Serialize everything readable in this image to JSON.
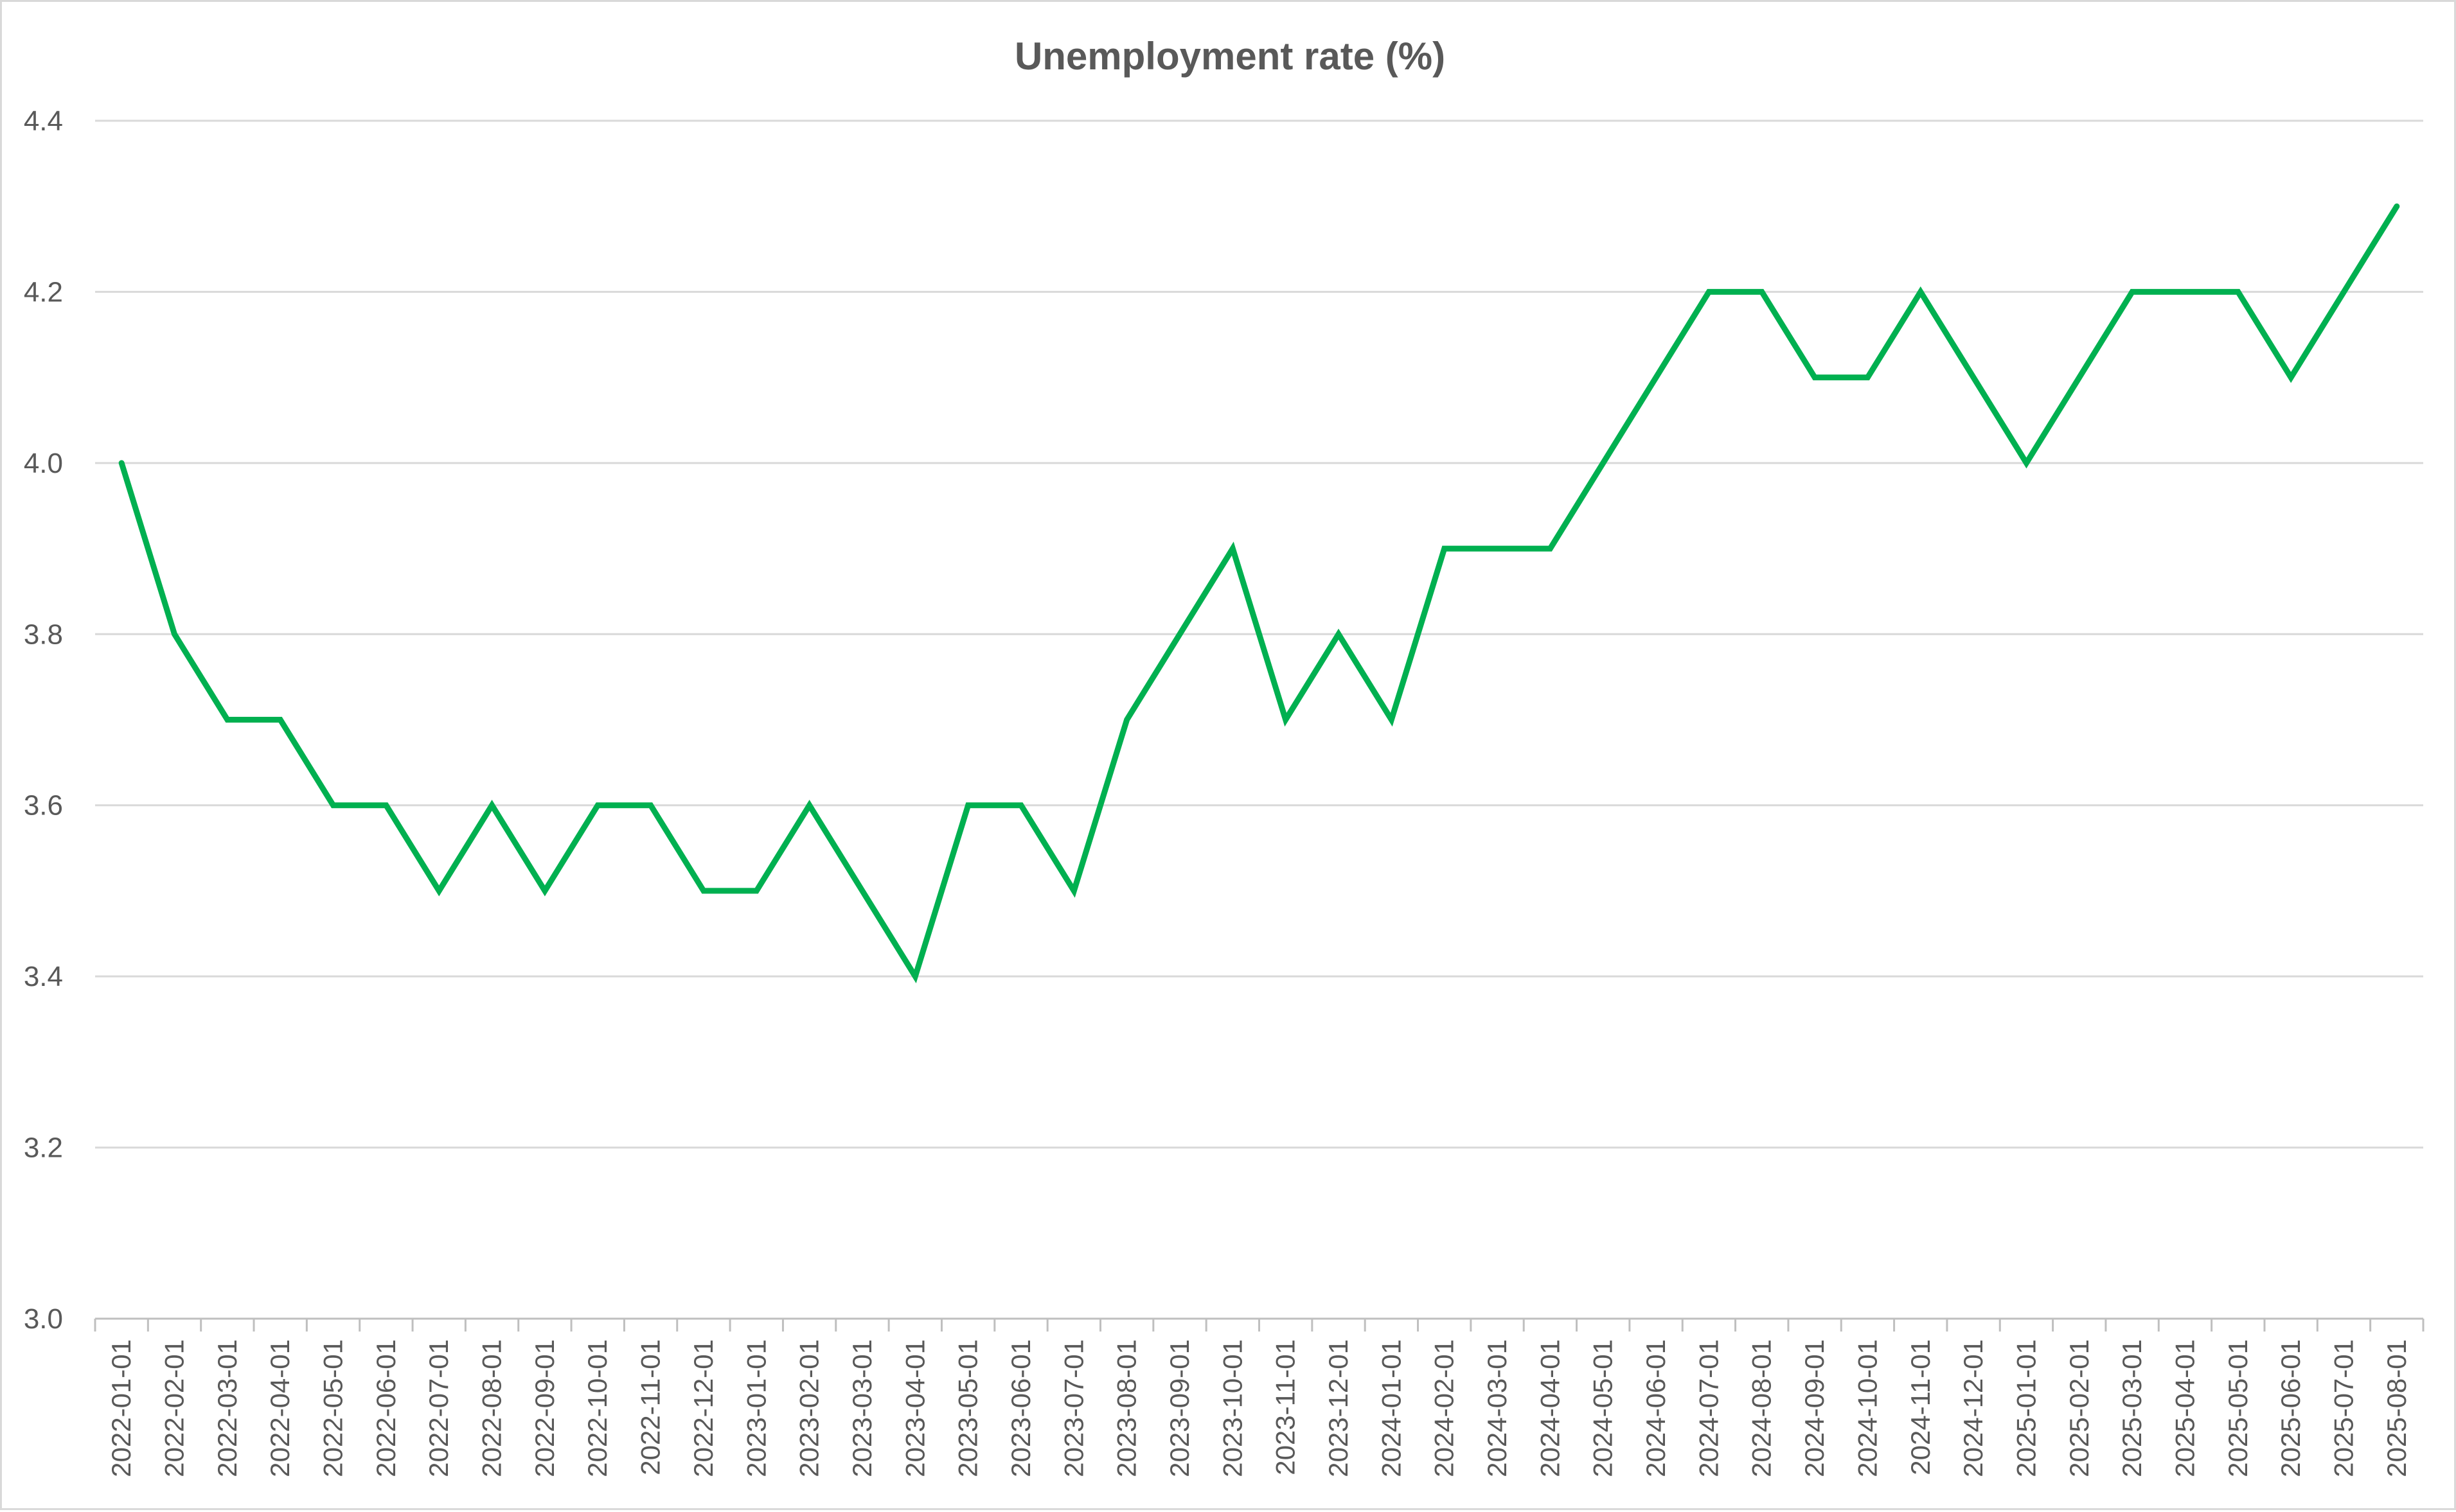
{
  "chart_data": {
    "type": "line",
    "title": "Unemployment rate (%)",
    "xlabel": "",
    "ylabel": "",
    "ylim": [
      3.0,
      4.4
    ],
    "yticks": [
      "3.0",
      "3.2",
      "3.4",
      "3.6",
      "3.8",
      "4.0",
      "4.2",
      "4.4"
    ],
    "grid": true,
    "legend": "none",
    "line_color": "#00b050",
    "categories": [
      "2022-01-01",
      "2022-02-01",
      "2022-03-01",
      "2022-04-01",
      "2022-05-01",
      "2022-06-01",
      "2022-07-01",
      "2022-08-01",
      "2022-09-01",
      "2022-10-01",
      "2022-11-01",
      "2022-12-01",
      "2023-01-01",
      "2023-02-01",
      "2023-03-01",
      "2023-04-01",
      "2023-05-01",
      "2023-06-01",
      "2023-07-01",
      "2023-08-01",
      "2023-09-01",
      "2023-10-01",
      "2023-11-01",
      "2023-12-01",
      "2024-01-01",
      "2024-02-01",
      "2024-03-01",
      "2024-04-01",
      "2024-05-01",
      "2024-06-01",
      "2024-07-01",
      "2024-08-01",
      "2024-09-01",
      "2024-10-01",
      "2024-11-01",
      "2024-12-01",
      "2025-01-01",
      "2025-02-01",
      "2025-03-01",
      "2025-04-01",
      "2025-05-01",
      "2025-06-01",
      "2025-07-01",
      "2025-08-01"
    ],
    "values": [
      4.0,
      3.8,
      3.7,
      3.7,
      3.6,
      3.6,
      3.5,
      3.6,
      3.5,
      3.6,
      3.6,
      3.5,
      3.5,
      3.6,
      3.5,
      3.4,
      3.6,
      3.6,
      3.5,
      3.7,
      3.8,
      3.9,
      3.7,
      3.8,
      3.7,
      3.9,
      3.9,
      3.9,
      4.0,
      4.1,
      4.2,
      4.2,
      4.1,
      4.1,
      4.2,
      4.1,
      4.0,
      4.1,
      4.2,
      4.2,
      4.2,
      4.1,
      4.2,
      4.3
    ]
  }
}
